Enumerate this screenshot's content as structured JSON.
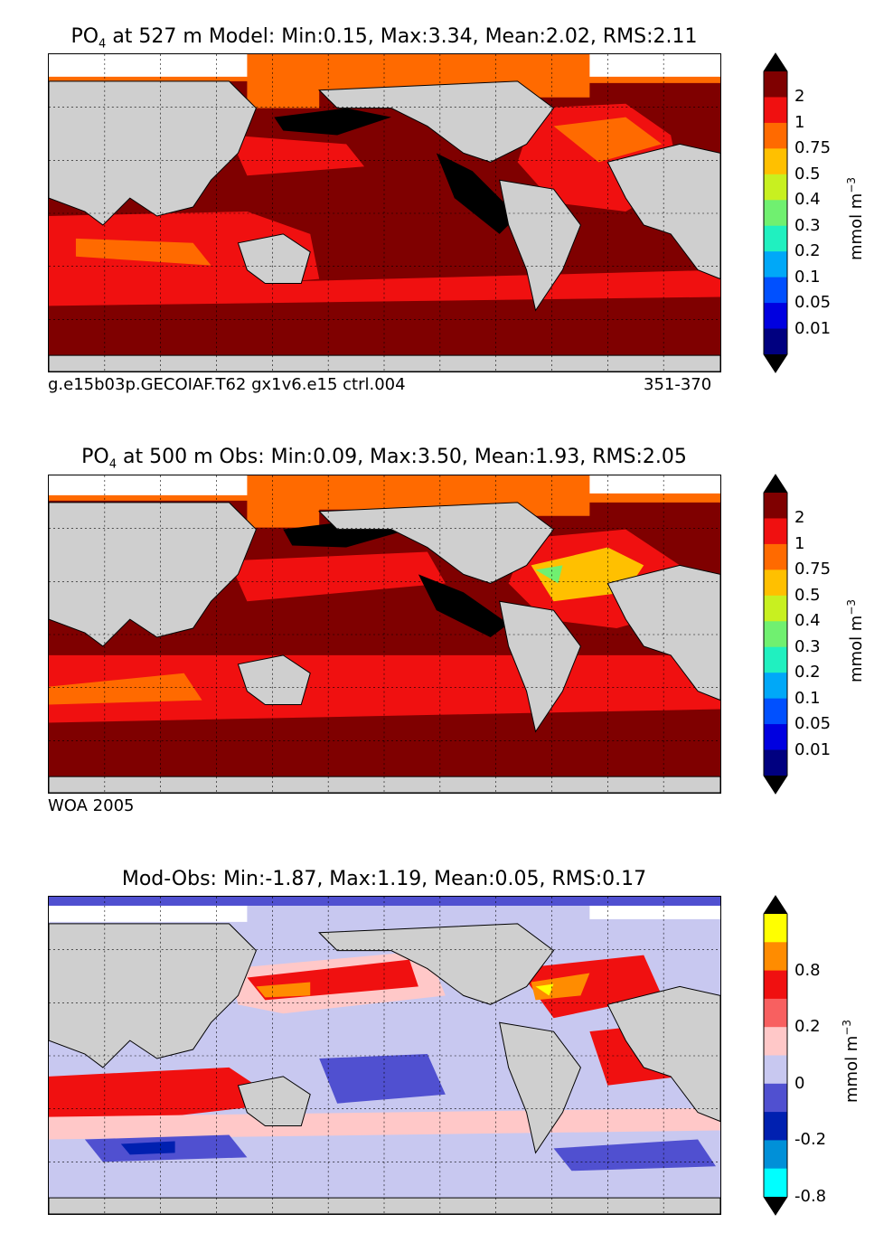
{
  "panels": [
    {
      "title_prefix": "PO",
      "title_sub": "4",
      "title_rest": " at 527 m Model: Min:0.15, Max:3.34, Mean:2.02, RMS:2.11",
      "caption_left": "g.e15b03p.GECOIAF.T62 gx1v6.e15 ctrl.004",
      "caption_right": "351-370"
    },
    {
      "title_prefix": "PO",
      "title_sub": "4",
      "title_rest": " at 500 m Obs: Min:0.09, Max:3.50, Mean:1.93, RMS:2.05",
      "caption_left": "WOA 2005",
      "caption_right": ""
    },
    {
      "title_prefix": "",
      "title_sub": "",
      "title_rest": "Mod-Obs: Min:-1.87, Max:1.19, Mean:0.05, RMS:0.17",
      "caption_left": "",
      "caption_right": ""
    }
  ],
  "colorbars": {
    "abs": {
      "unit": "mmol m",
      "unit_sup": "−3",
      "labels": [
        "2",
        "1",
        "0.75",
        "0.5",
        "0.4",
        "0.3",
        "0.2",
        "0.1",
        "0.05",
        "0.01"
      ],
      "colors": [
        "#7f0000",
        "#f01010",
        "#ff6a00",
        "#ffc000",
        "#c8f020",
        "#70f070",
        "#20f0c0",
        "#00a8f8",
        "#0050ff",
        "#0000e0",
        "#000080"
      ],
      "top_color": "#000000",
      "bottom_color": "#000000"
    },
    "diff": {
      "unit": "mmol m",
      "unit_sup": "−3",
      "labels": [
        "0.8",
        "0.2",
        "0",
        "-0.2",
        "-0.8"
      ],
      "colors": [
        "#ffff00",
        "#ff8c00",
        "#f01010",
        "#f86060",
        "#ffc8c8",
        "#c8c8f0",
        "#5050d0",
        "#0020b0",
        "#0090d8",
        "#00ffff"
      ],
      "top_color": "#000000",
      "bottom_color": "#000000"
    }
  },
  "map_colors": {
    "land": "#cfcfcf",
    "ice": "#ffffff",
    "abs_shallow_deep": [
      "#7f0000",
      "#f01010",
      "#ff6a00",
      "#ffc000",
      "#000000"
    ],
    "diff": [
      "#ffc8c8",
      "#c8c8f0",
      "#f01010",
      "#5050d0",
      "#ff8c00",
      "#ffff00",
      "#0020b0"
    ]
  }
}
